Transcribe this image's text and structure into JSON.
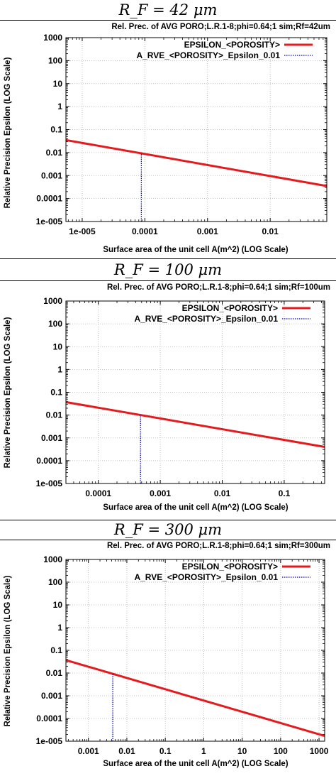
{
  "chart_data": [
    {
      "type": "line",
      "heading": "R_F = 42 μm",
      "title": "Rel. Prec. of AVG PORO;L.R.1-8;phi=0.64;1 sim;Rf=42um",
      "xlabel": "Surface area of the unit cell A(m^2) (LOG Scale)",
      "ylabel": "Relative Precision Epsilon (LOG Scale)",
      "x_scale": "log",
      "y_scale": "log",
      "xlim": [
        5.5e-06,
        0.08
      ],
      "ylim": [
        1e-05,
        1000
      ],
      "x_ticks": [
        1e-05,
        0.0001,
        0.001,
        0.01
      ],
      "x_tick_labels": [
        "1e-005",
        "0.0001",
        "0.001",
        "0.01"
      ],
      "y_ticks": [
        1000,
        100,
        10,
        1,
        0.1,
        0.01,
        0.001,
        0.0001,
        1e-05
      ],
      "y_tick_labels": [
        "1000",
        "100",
        "10",
        "1",
        "0.1",
        "0.01",
        "0.001",
        "0.0001",
        "1e-005"
      ],
      "grid": true,
      "legend_position": "top-right",
      "series": [
        {
          "name": "EPSILON_<POROSITY>",
          "color": "#e41a1c",
          "style": "solid",
          "x": [
            5.5e-06,
            0.08
          ],
          "y": [
            0.035,
            0.00035
          ]
        },
        {
          "name": "A_RVE_<POROSITY>_Epsilon_0.01",
          "color": "#0000cc",
          "style": "dotted",
          "x": [
            8.8e-05,
            8.8e-05
          ],
          "y": [
            1e-05,
            0.01
          ]
        }
      ]
    },
    {
      "type": "line",
      "heading": "R_F = 100 μm",
      "title": "Rel. Prec. of AVG PORO;L.R.1-8;phi=0.64;1 sim;Rf=100um",
      "xlabel": "Surface area of the unit cell A(m^2) (LOG Scale)",
      "ylabel": "Relative Precision Epsilon (LOG Scale)",
      "x_scale": "log",
      "y_scale": "log",
      "xlim": [
        3e-05,
        0.45
      ],
      "ylim": [
        1e-05,
        1000
      ],
      "x_ticks": [
        0.0001,
        0.001,
        0.01,
        0.1
      ],
      "x_tick_labels": [
        "0.0001",
        "0.001",
        "0.01",
        "0.1"
      ],
      "y_ticks": [
        1000,
        100,
        10,
        1,
        0.1,
        0.01,
        0.001,
        0.0001,
        1e-05
      ],
      "y_tick_labels": [
        "1000",
        "100",
        "10",
        "1",
        "0.1",
        "0.01",
        "0.001",
        "0.0001",
        "1e-005"
      ],
      "grid": true,
      "legend_position": "top-right",
      "series": [
        {
          "name": "EPSILON_<POROSITY>",
          "color": "#e41a1c",
          "style": "solid",
          "x": [
            3e-05,
            0.45
          ],
          "y": [
            0.037,
            0.0004
          ]
        },
        {
          "name": "A_RVE_<POROSITY>_Epsilon_0.01",
          "color": "#0000cc",
          "style": "dotted",
          "x": [
            0.00048,
            0.00048
          ],
          "y": [
            1e-05,
            0.01
          ]
        }
      ]
    },
    {
      "type": "line",
      "heading": "R_F = 300 μm",
      "title": "Rel. Prec. of AVG PORO;L.R.1-8;phi=0.64;1 sim;Rf=300um",
      "xlabel": "Surface area of the unit cell A(m^2) (LOG Scale)",
      "ylabel": "Relative Precision Epsilon (LOG Scale)",
      "x_scale": "log",
      "y_scale": "log",
      "xlim": [
        0.00026,
        1400
      ],
      "ylim": [
        1e-05,
        1000
      ],
      "x_ticks": [
        0.001,
        0.01,
        0.1,
        1,
        10,
        100,
        1000
      ],
      "x_tick_labels": [
        "0.001",
        "0.01",
        "0.1",
        "1",
        "10",
        "100",
        "1000"
      ],
      "y_ticks": [
        1000,
        100,
        10,
        1,
        0.1,
        0.01,
        0.001,
        0.0001,
        1e-05
      ],
      "y_tick_labels": [
        "1000",
        "100",
        "10",
        "1",
        "0.1",
        "0.01",
        "0.001",
        "0.0001",
        "1e-005"
      ],
      "grid": true,
      "legend_position": "top-right",
      "series": [
        {
          "name": "EPSILON_<POROSITY>",
          "color": "#e41a1c",
          "style": "solid",
          "x": [
            0.00026,
            1400
          ],
          "y": [
            0.037,
            1.7e-05
          ]
        },
        {
          "name": "A_RVE_<POROSITY>_Epsilon_0.01",
          "color": "#0000cc",
          "style": "dotted",
          "x": [
            0.0043,
            0.0043
          ],
          "y": [
            1e-05,
            0.01
          ]
        }
      ]
    }
  ]
}
